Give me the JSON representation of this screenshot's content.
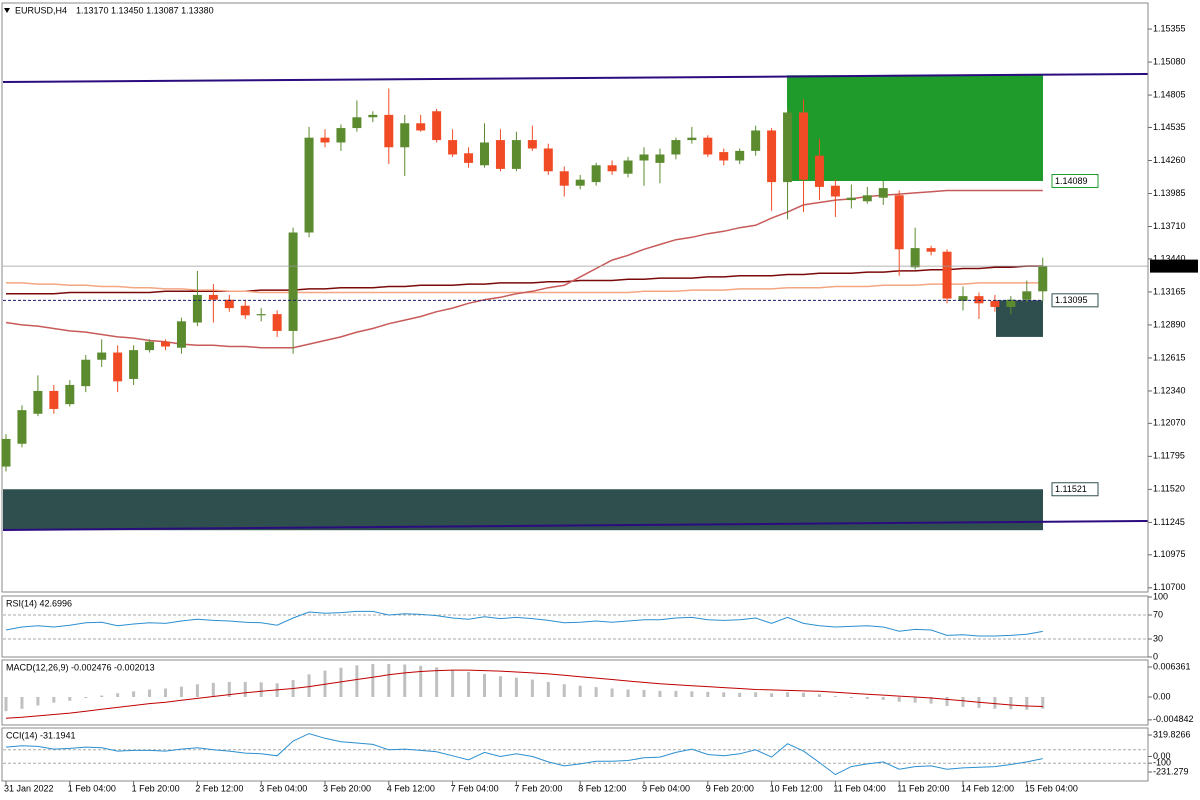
{
  "chart_data": [
    {
      "type": "candlestick",
      "title": "EURUSD,H4",
      "ohlc_label": "1.13170 1.13450 1.13087 1.13380",
      "bid_label": "1.13380",
      "up_color": "#5b8a2f",
      "down_color": "#f04b24",
      "categories": [
        "31 Jan 2022",
        null,
        null,
        null,
        "1 Feb 04:00",
        null,
        null,
        null,
        "1 Feb 20:00",
        null,
        null,
        null,
        "2 Feb 12:00",
        null,
        null,
        null,
        "3 Feb 04:00",
        null,
        null,
        null,
        "3 Feb 20:00",
        null,
        null,
        null,
        "4 Feb 12:00",
        null,
        null,
        null,
        "7 Feb 04:00",
        null,
        null,
        null,
        "7 Feb 20:00",
        null,
        null,
        null,
        "8 Feb 12:00",
        null,
        null,
        null,
        "9 Feb 04:00",
        null,
        null,
        null,
        "9 Feb 20:00",
        null,
        null,
        null,
        "10 Feb 12:00",
        null,
        null,
        null,
        "11 Feb 04:00",
        null,
        null,
        null,
        "11 Feb 20:00",
        null,
        null,
        null,
        "14 Feb 12:00",
        null,
        null,
        null,
        "15 Feb 04:00",
        null
      ],
      "open": [
        1.1171,
        1.119,
        1.1215,
        1.1234,
        1.1223,
        1.1238,
        1.126,
        1.1266,
        1.1244,
        1.1268,
        1.1275,
        1.127,
        1.1291,
        1.1314,
        1.131,
        1.1305,
        1.1297,
        1.1298,
        1.1284,
        1.1366,
        1.1445,
        1.1441,
        1.1453,
        1.1462,
        1.1464,
        1.1437,
        1.1457,
        1.1467,
        1.1443,
        1.1432,
        1.1422,
        1.1443,
        1.1419,
        1.1443,
        1.1436,
        1.1417,
        1.1405,
        1.1408,
        1.1422,
        1.1415,
        1.1426,
        1.1424,
        1.1431,
        1.1443,
        1.1445,
        1.1433,
        1.1426,
        1.1434,
        1.1451,
        1.1408,
        1.1466,
        1.143,
        1.1405,
        1.1393,
        1.1392,
        1.1395,
        1.1397,
        1.1337,
        1.1353,
        1.135,
        1.1309,
        1.1313,
        1.1309,
        1.1304,
        1.131,
        1.1317
      ],
      "high": [
        1.1198,
        1.1222,
        1.1247,
        1.1239,
        1.1243,
        1.1264,
        1.1277,
        1.1272,
        1.1272,
        1.1277,
        1.1277,
        1.1295,
        1.1334,
        1.1323,
        1.1314,
        1.131,
        1.1303,
        1.1301,
        1.137,
        1.1454,
        1.1452,
        1.1456,
        1.1476,
        1.1467,
        1.1486,
        1.1464,
        1.1464,
        1.1469,
        1.1452,
        1.1437,
        1.1457,
        1.1452,
        1.145,
        1.1455,
        1.144,
        1.1421,
        1.1414,
        1.1424,
        1.1426,
        1.1429,
        1.1437,
        1.1436,
        1.1445,
        1.1454,
        1.1447,
        1.1436,
        1.1436,
        1.1455,
        1.1453,
        1.147,
        1.1477,
        1.1444,
        1.141,
        1.1406,
        1.1404,
        1.1409,
        1.1401,
        1.137,
        1.1355,
        1.1352,
        1.1321,
        1.1316,
        1.1314,
        1.1313,
        1.1326,
        1.1345
      ],
      "low": [
        1.1167,
        1.1187,
        1.1213,
        1.1215,
        1.1221,
        1.1233,
        1.1254,
        1.1233,
        1.1239,
        1.1266,
        1.1268,
        1.1265,
        1.1288,
        1.1291,
        1.13,
        1.1294,
        1.1292,
        1.1279,
        1.1265,
        1.1362,
        1.1437,
        1.1434,
        1.145,
        1.1458,
        1.1423,
        1.1413,
        1.145,
        1.1441,
        1.1429,
        1.142,
        1.142,
        1.1417,
        1.1417,
        1.1434,
        1.1414,
        1.1396,
        1.1402,
        1.1405,
        1.1414,
        1.1412,
        1.1405,
        1.1407,
        1.1427,
        1.144,
        1.1429,
        1.1422,
        1.1423,
        1.143,
        1.1384,
        1.1377,
        1.1383,
        1.1393,
        1.1379,
        1.1386,
        1.139,
        1.1389,
        1.133,
        1.1335,
        1.1347,
        1.1307,
        1.1301,
        1.1294,
        1.13,
        1.1298,
        1.1308,
        1.13087
      ],
      "close": [
        1.1194,
        1.1218,
        1.1234,
        1.1219,
        1.1239,
        1.126,
        1.1266,
        1.1242,
        1.1268,
        1.1275,
        1.1271,
        1.1292,
        1.1314,
        1.131,
        1.1303,
        1.1297,
        1.1298,
        1.1284,
        1.1366,
        1.1445,
        1.1441,
        1.1453,
        1.1462,
        1.1464,
        1.1437,
        1.1457,
        1.1451,
        1.1443,
        1.1431,
        1.1424,
        1.1441,
        1.1419,
        1.1443,
        1.1436,
        1.1417,
        1.1405,
        1.141,
        1.1422,
        1.1417,
        1.1426,
        1.1431,
        1.1431,
        1.1443,
        1.1445,
        1.1431,
        1.1426,
        1.1434,
        1.1451,
        1.1408,
        1.1466,
        1.141,
        1.1404,
        1.1396,
        1.1395,
        1.1397,
        1.1403,
        1.1352,
        1.1353,
        1.135,
        1.1311,
        1.1313,
        1.1307,
        1.1304,
        1.131,
        1.1317,
        1.1338
      ],
      "series": [
        {
          "color": "#7a0a0a",
          "values": [
            1.1315,
            1.1315,
            1.1315,
            1.1315,
            1.1316,
            1.1316,
            1.1316,
            1.1316,
            1.1316,
            1.1316,
            1.1317,
            1.1317,
            1.1317,
            1.1317,
            1.1317,
            1.1317,
            1.1318,
            1.1318,
            1.1318,
            1.1319,
            1.1319,
            1.132,
            1.132,
            1.132,
            1.1321,
            1.1321,
            1.1322,
            1.1322,
            1.1322,
            1.1323,
            1.1323,
            1.1324,
            1.1324,
            1.1324,
            1.1325,
            1.1325,
            1.1326,
            1.1326,
            1.1326,
            1.1327,
            1.1327,
            1.1328,
            1.1328,
            1.1328,
            1.1329,
            1.1329,
            1.133,
            1.133,
            1.133,
            1.1331,
            1.1331,
            1.1332,
            1.1332,
            1.1332,
            1.1333,
            1.1333,
            1.1334,
            1.1334,
            1.1335,
            1.1335,
            1.1336,
            1.1336,
            1.1337,
            1.1337,
            1.1338,
            1.1338
          ]
        },
        {
          "color": "#f4a582",
          "values": [
            1.1324,
            1.1324,
            1.1323,
            1.1323,
            1.1322,
            1.1322,
            1.1321,
            1.1321,
            1.132,
            1.132,
            1.1319,
            1.1319,
            1.1318,
            1.1318,
            1.1317,
            1.1317,
            1.1316,
            1.1316,
            1.1316,
            1.1316,
            1.1316,
            1.1316,
            1.1316,
            1.1316,
            1.1316,
            1.1316,
            1.1316,
            1.1316,
            1.1316,
            1.1316,
            1.1316,
            1.1316,
            1.1316,
            1.1316,
            1.1316,
            1.1316,
            1.1316,
            1.1316,
            1.1316,
            1.1316,
            1.1317,
            1.1317,
            1.1317,
            1.1318,
            1.1318,
            1.1318,
            1.1319,
            1.1319,
            1.1319,
            1.132,
            1.132,
            1.132,
            1.1321,
            1.1321,
            1.1321,
            1.1322,
            1.1322,
            1.1322,
            1.1323,
            1.1323,
            1.1323,
            1.1324,
            1.1324,
            1.1324,
            1.1324,
            1.1324
          ]
        },
        {
          "color": "#c85a5a",
          "values": [
            1.1291,
            1.1289,
            1.1288,
            1.1286,
            1.1284,
            1.1283,
            1.1281,
            1.1279,
            1.1278,
            1.1276,
            1.1275,
            1.1273,
            1.1272,
            1.1272,
            1.1271,
            1.1271,
            1.127,
            1.127,
            1.127,
            1.1273,
            1.1276,
            1.1279,
            1.1283,
            1.1286,
            1.129,
            1.1293,
            1.1296,
            1.13,
            1.1303,
            1.1307,
            1.131,
            1.1312,
            1.1315,
            1.1317,
            1.132,
            1.1322,
            1.1329,
            1.1336,
            1.1343,
            1.1347,
            1.1352,
            1.1356,
            1.136,
            1.1362,
            1.1365,
            1.1367,
            1.137,
            1.1372,
            1.1378,
            1.1383,
            1.1389,
            1.1391,
            1.1393,
            1.1394,
            1.1396,
            1.1397,
            1.1398,
            1.1399,
            1.14,
            1.1401,
            1.1401,
            1.1401,
            1.1401,
            1.1401,
            1.1401,
            1.1401
          ]
        }
      ],
      "zones": [
        {
          "color": "#1f9b2c",
          "high": 1.1497,
          "low": 1.14089
        },
        {
          "color": "#2f4f4f",
          "high": 1.11521,
          "low": 1.1118
        },
        {
          "color": "#2f4f4f",
          "high": 1.13095,
          "low": 1.1279
        }
      ],
      "ylim": [
        1.10665,
        1.15572
      ],
      "yticks": [
        1.15355,
        {
          "value": 1.1508,
          "label": "1.15080"
        },
        1.14805,
        1.14535,
        {
          "value": 1.1426,
          "label": "1.14260"
        },
        1.13985,
        {
          "value": 1.1371,
          "label": "1.13710"
        },
        {
          "value": 1.1344,
          "label": "1.13440"
        },
        1.13165,
        {
          "value": 1.1289,
          "label": "1.12890"
        },
        1.12615,
        {
          "value": 1.1234,
          "label": "1.12340"
        },
        {
          "value": 1.1207,
          "label": "1.12070"
        },
        1.11795,
        {
          "value": 1.1152,
          "label": "1.11520"
        },
        1.11245,
        1.10975,
        {
          "value": 1.107,
          "label": "1.10700"
        }
      ]
    },
    {
      "type": "line",
      "title": "RSI(14) 42.6996",
      "ylim": [
        0,
        100
      ],
      "yticks": [
        100,
        70,
        30,
        0
      ],
      "levels": [
        70,
        30
      ],
      "series": [
        {
          "color": "#2b8fd0",
          "values": [
            45,
            50,
            52,
            50,
            53,
            57,
            58,
            52,
            55,
            57,
            56,
            60,
            63,
            61,
            60,
            58,
            57,
            53,
            65,
            75,
            73,
            74,
            76,
            76,
            70,
            72,
            71,
            69,
            65,
            63,
            67,
            64,
            66,
            64,
            61,
            57,
            58,
            60,
            58,
            60,
            62,
            62,
            65,
            66,
            62,
            61,
            62,
            65,
            56,
            66,
            56,
            52,
            50,
            51,
            52,
            50,
            43,
            46,
            45,
            36,
            37,
            35,
            35,
            36,
            38,
            42.6996
          ]
        }
      ]
    },
    {
      "type": "combo",
      "title": "MACD(12,26,9) -0.002476 -0.002013",
      "ylim": [
        -0.00572,
        0.00763
      ],
      "yticks": [
        0.006361,
        {
          "value": 0,
          "label": "0.00"
        },
        -0.004842
      ],
      "series": [
        {
          "type": "bar",
          "color": "#c0c0c0",
          "values": [
            -0.003,
            -0.0025,
            -0.0018,
            -0.0012,
            -0.0008,
            -0.0002,
            0.0003,
            0.0008,
            0.0012,
            0.0016,
            0.0018,
            0.0022,
            0.0027,
            0.003,
            0.0032,
            0.0032,
            0.0031,
            0.0029,
            0.0036,
            0.0048,
            0.0056,
            0.0062,
            0.0067,
            0.007,
            0.007,
            0.0069,
            0.0066,
            0.0063,
            0.0058,
            0.0053,
            0.0049,
            0.0044,
            0.0041,
            0.0037,
            0.0032,
            0.0027,
            0.0024,
            0.0021,
            0.0018,
            0.0016,
            0.0015,
            0.0013,
            0.0013,
            0.0012,
            0.0011,
            0.001,
            0.0009,
            0.001,
            0.0008,
            0.001,
            0.0009,
            0.0006,
            0.0002,
            -0.0002,
            -0.0004,
            -0.0006,
            -0.001,
            -0.0012,
            -0.0014,
            -0.0019,
            -0.0021,
            -0.0023,
            -0.0025,
            -0.0026,
            -0.0027,
            -0.002476
          ]
        },
        {
          "type": "line",
          "color": "#c00000",
          "values": [
            -0.0045,
            -0.0043,
            -0.004,
            -0.0037,
            -0.0034,
            -0.003,
            -0.0026,
            -0.0022,
            -0.0018,
            -0.0014,
            -0.0011,
            -0.0007,
            -0.0003,
            0.0001,
            0.0005,
            0.0009,
            0.0012,
            0.0015,
            0.0018,
            0.0022,
            0.0027,
            0.0032,
            0.0037,
            0.0042,
            0.0047,
            0.0051,
            0.0054,
            0.0056,
            0.0057,
            0.0057,
            0.0056,
            0.0055,
            0.0053,
            0.0051,
            0.0049,
            0.0046,
            0.0043,
            0.004,
            0.0037,
            0.0034,
            0.0031,
            0.0028,
            0.0026,
            0.0024,
            0.0022,
            0.002,
            0.0018,
            0.0016,
            0.0015,
            0.0014,
            0.0013,
            0.0012,
            0.001,
            0.0008,
            0.0006,
            0.0004,
            0.0002,
            0,
            -0.0002,
            -0.0005,
            -0.0008,
            -0.0011,
            -0.0014,
            -0.0017,
            -0.0019,
            -0.002013
          ]
        }
      ]
    },
    {
      "type": "line",
      "title": "CCI(14) -31.1941",
      "ylim": [
        -365,
        409
      ],
      "yticks": [
        319.8266,
        {
          "value": 0,
          "label": "0.00"
        },
        -100,
        -231.279
      ],
      "levels": [
        100,
        -100
      ],
      "series": [
        {
          "color": "#2b8fd0",
          "values": [
            140,
            160,
            150,
            110,
            120,
            140,
            130,
            80,
            90,
            90,
            80,
            110,
            130,
            100,
            80,
            50,
            40,
            10,
            230,
            340,
            270,
            220,
            200,
            180,
            100,
            110,
            90,
            70,
            10,
            -50,
            60,
            0,
            40,
            0,
            -80,
            -140,
            -110,
            -70,
            -70,
            -60,
            -20,
            -10,
            60,
            110,
            30,
            10,
            40,
            100,
            -10,
            190,
            80,
            -90,
            -270,
            -150,
            -110,
            -80,
            -190,
            -150,
            -140,
            -190,
            -170,
            -160,
            -150,
            -120,
            -80,
            -31.1941
          ]
        }
      ]
    }
  ]
}
